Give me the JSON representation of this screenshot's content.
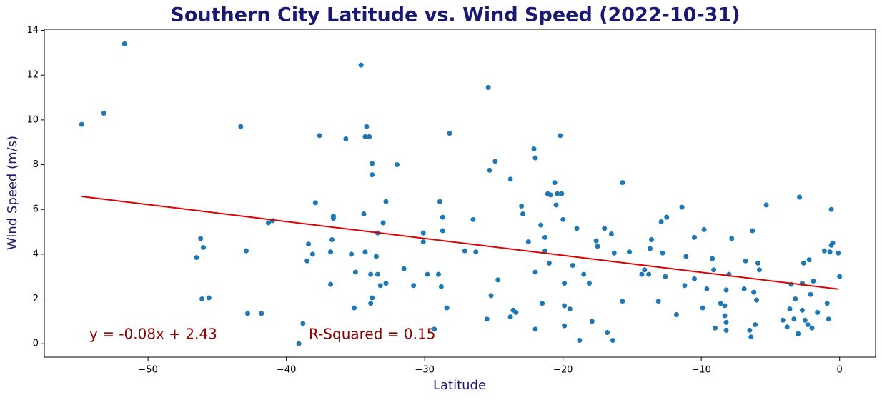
{
  "chart_data": {
    "type": "scatter",
    "title": "Southern City Latitude vs. Wind Speed (2022-10-31)",
    "x_label": "Latitude",
    "y_label": "Wind Speed (m/s)",
    "color": "#1f77b4",
    "xlim": [
      -57.5,
      2.6
    ],
    "ylim": [
      -0.6,
      14.05
    ],
    "xticks": [
      {
        "value": -50,
        "label": "−50"
      },
      {
        "value": -40,
        "label": "−40"
      },
      {
        "value": -30,
        "label": "−30"
      },
      {
        "value": -20,
        "label": "−20"
      },
      {
        "value": -10,
        "label": "−10"
      },
      0
    ],
    "yticks": [
      0,
      2,
      4,
      6,
      8,
      10,
      12,
      14
    ],
    "x": [
      -54.8,
      -53.2,
      -51.7,
      -46.5,
      -46.2,
      -46.0,
      -46.1,
      -45.6,
      -43.3,
      -42.9,
      -42.8,
      -41.8,
      -41.3,
      -41.0,
      -38.8,
      -39.1,
      -38.5,
      -38.4,
      -38.1,
      -37.9,
      -37.6,
      -36.8,
      -36.8,
      -36.7,
      -36.6,
      -36.6,
      -35.7,
      -35.3,
      -35.1,
      -35.0,
      -34.6,
      -34.4,
      -34.3,
      -34.3,
      -34.2,
      -34.0,
      -33.9,
      -33.8,
      -33.8,
      -33.8,
      -33.9,
      -33.5,
      -33.4,
      -33.4,
      -33.2,
      -33.0,
      -32.8,
      -32.8,
      -32.0,
      -31.5,
      -30.8,
      -30.1,
      -30.1,
      -29.8,
      -29.3,
      -29.0,
      -28.9,
      -28.8,
      -28.7,
      -28.7,
      -28.4,
      -28.2,
      -27.1,
      -26.5,
      -26.3,
      -25.5,
      -25.4,
      -25.3,
      -25.2,
      -24.9,
      -24.7,
      -23.8,
      -23.8,
      -23.6,
      -23.4,
      -23.0,
      -22.9,
      -22.5,
      -22.1,
      -22.0,
      -22.0,
      -22.0,
      -21.6,
      -21.5,
      -21.3,
      -21.3,
      -21.1,
      -21.0,
      -20.9,
      -20.6,
      -20.5,
      -20.4,
      -20.2,
      -20.1,
      -20.0,
      -19.9,
      -19.9,
      -19.9,
      -19.5,
      -19.3,
      -19.0,
      -18.8,
      -18.5,
      -18.1,
      -17.9,
      -17.6,
      -17.5,
      -17.0,
      -16.8,
      -16.5,
      -16.4,
      -16.3,
      -15.7,
      -15.7,
      -15.2,
      -14.3,
      -14.1,
      -13.8,
      -13.7,
      -13.6,
      -13.1,
      -12.9,
      -12.8,
      -12.6,
      -12.5,
      -11.8,
      -11.4,
      -11.2,
      -11.1,
      -10.5,
      -10.5,
      -9.9,
      -9.8,
      -9.6,
      -9.2,
      -9.1,
      -9.0,
      -8.6,
      -8.3,
      -8.3,
      -8.2,
      -8.2,
      -8.2,
      -8.0,
      -7.8,
      -6.9,
      -6.8,
      -6.5,
      -6.4,
      -6.3,
      -6.2,
      -6.1,
      -6.0,
      -5.9,
      -5.8,
      -5.3,
      -4.1,
      -3.8,
      -3.6,
      -3.5,
      -3.3,
      -3.2,
      -3.0,
      -2.9,
      -2.7,
      -2.7,
      -2.6,
      -2.5,
      -2.3,
      -2.2,
      -2.1,
      -2.0,
      -1.9,
      -1.6,
      -1.1,
      -0.9,
      -0.8,
      -0.7,
      -0.6,
      -0.6,
      -0.5,
      -0.1,
      0.0
    ],
    "values": [
      9.8,
      10.3,
      13.4,
      3.85,
      4.7,
      4.3,
      2.0,
      2.05,
      9.7,
      4.15,
      1.35,
      1.35,
      5.4,
      5.5,
      0.9,
      0.0,
      3.7,
      4.45,
      4.0,
      6.3,
      9.3,
      2.65,
      4.1,
      4.65,
      5.6,
      5.7,
      9.15,
      4.0,
      1.6,
      3.2,
      12.45,
      5.8,
      9.25,
      4.1,
      9.7,
      9.25,
      3.1,
      8.05,
      7.55,
      2.05,
      1.8,
      3.9,
      3.1,
      4.95,
      2.6,
      5.4,
      2.7,
      6.35,
      8.0,
      3.35,
      2.6,
      4.55,
      4.95,
      3.1,
      0.65,
      3.1,
      6.35,
      2.55,
      5.05,
      5.65,
      1.6,
      9.4,
      4.15,
      5.55,
      4.1,
      1.1,
      11.45,
      7.75,
      2.15,
      8.15,
      2.85,
      7.35,
      1.2,
      1.5,
      1.4,
      6.15,
      5.8,
      4.55,
      8.7,
      8.3,
      3.2,
      0.65,
      5.3,
      1.8,
      4.15,
      4.75,
      6.7,
      3.6,
      6.65,
      7.2,
      6.2,
      6.7,
      9.3,
      6.7,
      5.55,
      2.7,
      0.8,
      1.7,
      1.55,
      3.5,
      5.15,
      0.15,
      3.1,
      2.7,
      1.0,
      4.6,
      4.35,
      5.15,
      0.5,
      4.9,
      0.15,
      4.05,
      7.2,
      1.9,
      4.1,
      3.1,
      3.3,
      3.1,
      4.25,
      4.65,
      1.9,
      5.45,
      4.05,
      3.0,
      5.65,
      1.3,
      6.1,
      2.6,
      3.9,
      2.9,
      4.75,
      1.6,
      5.1,
      2.45,
      3.8,
      3.3,
      0.7,
      1.8,
      1.25,
      1.7,
      2.4,
      0.6,
      0.95,
      3.1,
      4.7,
      2.45,
      3.7,
      0.6,
      0.3,
      5.05,
      2.3,
      0.85,
      1.95,
      3.6,
      3.3,
      6.2,
      1.05,
      0.75,
      1.55,
      2.65,
      1.1,
      2.0,
      0.45,
      6.55,
      2.7,
      1.5,
      3.6,
      1.05,
      0.85,
      3.75,
      2.2,
      0.7,
      2.8,
      1.4,
      4.15,
      1.8,
      1.1,
      4.1,
      4.4,
      6.0,
      4.5,
      4.05,
      3.0
    ],
    "regression": {
      "color": "#e00000",
      "x": [
        -54.8,
        -0.1
      ],
      "y": [
        6.58,
        2.44
      ]
    },
    "annotations": [
      "y = -0.08x + 2.43",
      "R-Squared = 0.15"
    ],
    "annotation_color": "#8b0000"
  }
}
